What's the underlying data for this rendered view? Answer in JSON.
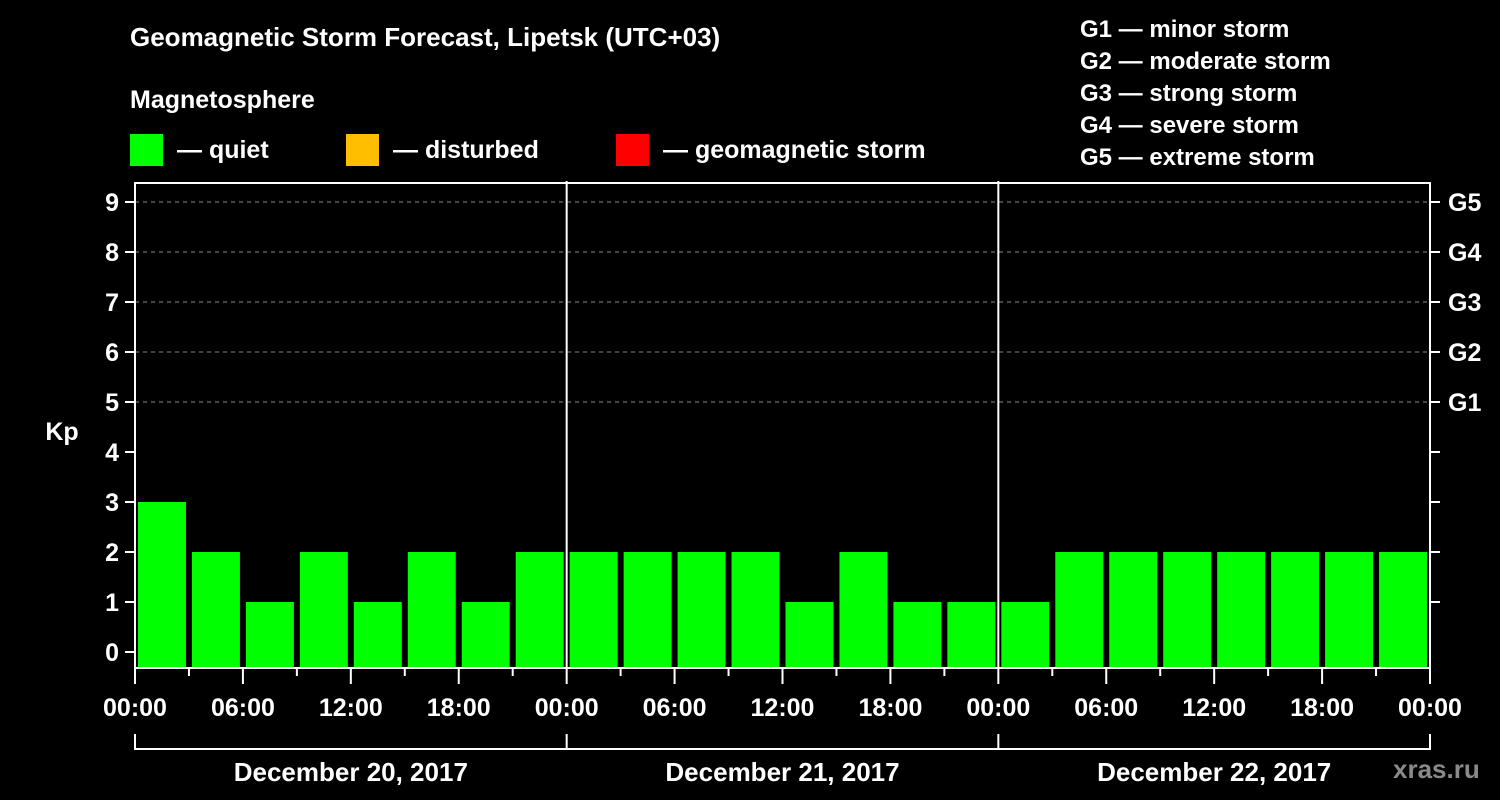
{
  "header": {
    "title": "Geomagnetic Storm Forecast, Lipetsk (UTC+03)",
    "subtitle": "Magnetosphere"
  },
  "legend": [
    {
      "label": "— quiet",
      "color": "#00ff00"
    },
    {
      "label": "— disturbed",
      "color": "#ffbf00"
    },
    {
      "label": "— geomagnetic storm",
      "color": "#ff0000"
    }
  ],
  "storm_scale": [
    "G1 — minor storm",
    "G2 — moderate storm",
    "G3 — strong storm",
    "G4 — severe storm",
    "G5 — extreme storm"
  ],
  "watermark": "xras.ru",
  "chart_data": {
    "type": "bar",
    "title": "Geomagnetic Storm Forecast, Lipetsk (UTC+03)",
    "xlabel": "",
    "ylabel": "Kp",
    "ylim": [
      0,
      9
    ],
    "grid": "horizontal dashed at 5-9",
    "y_ticks": [
      0,
      1,
      2,
      3,
      4,
      5,
      6,
      7,
      8,
      9
    ],
    "right_axis_labels": [
      {
        "value": 5,
        "label": "G1"
      },
      {
        "value": 6,
        "label": "G2"
      },
      {
        "value": 7,
        "label": "G3"
      },
      {
        "value": 8,
        "label": "G4"
      },
      {
        "value": 9,
        "label": "G5"
      }
    ],
    "x_tick_labels": [
      "00:00",
      "06:00",
      "12:00",
      "18:00",
      "00:00",
      "06:00",
      "12:00",
      "18:00",
      "00:00",
      "06:00",
      "12:00",
      "18:00",
      "00:00"
    ],
    "days": [
      "December 20, 2017",
      "December 21, 2017",
      "December 22, 2017"
    ],
    "categories": [
      "Dec 20 00-03",
      "Dec 20 03-06",
      "Dec 20 06-09",
      "Dec 20 09-12",
      "Dec 20 12-15",
      "Dec 20 15-18",
      "Dec 20 18-21",
      "Dec 20 21-24",
      "Dec 21 00-03",
      "Dec 21 03-06",
      "Dec 21 06-09",
      "Dec 21 09-12",
      "Dec 21 12-15",
      "Dec 21 15-18",
      "Dec 21 18-21",
      "Dec 21 21-24",
      "Dec 22 00-03",
      "Dec 22 03-06",
      "Dec 22 06-09",
      "Dec 22 09-12",
      "Dec 22 12-15",
      "Dec 22 15-18",
      "Dec 22 18-21",
      "Dec 22 21-24"
    ],
    "values": [
      3,
      2,
      1,
      2,
      1,
      2,
      1,
      2,
      2,
      2,
      2,
      2,
      1,
      2,
      1,
      1,
      1,
      2,
      2,
      2,
      2,
      2,
      2,
      2
    ],
    "bar_color": "#00ff00",
    "legend_position": "top"
  }
}
